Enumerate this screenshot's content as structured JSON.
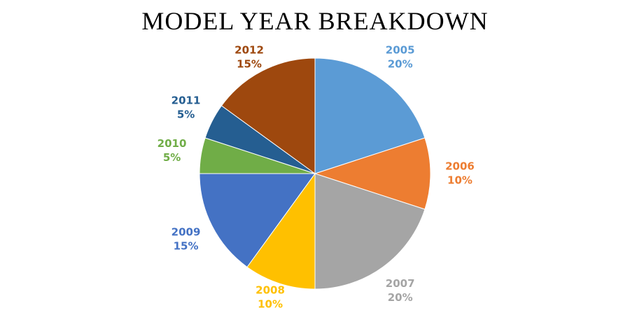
{
  "chart_data": {
    "type": "pie",
    "title": "MODEL YEAR BREAKDOWN",
    "categories": [
      "2005",
      "2006",
      "2007",
      "2008",
      "2009",
      "2010",
      "2011",
      "2012"
    ],
    "values": [
      20,
      10,
      20,
      10,
      15,
      5,
      5,
      15
    ],
    "value_labels": [
      "20%",
      "10%",
      "20%",
      "10%",
      "15%",
      "5%",
      "5%",
      "15%"
    ],
    "colors": [
      "#5b9bd5",
      "#ed7d31",
      "#a5a5a5",
      "#ffc000",
      "#4472c4",
      "#70ad47",
      "#255e91",
      "#9e480e"
    ]
  }
}
